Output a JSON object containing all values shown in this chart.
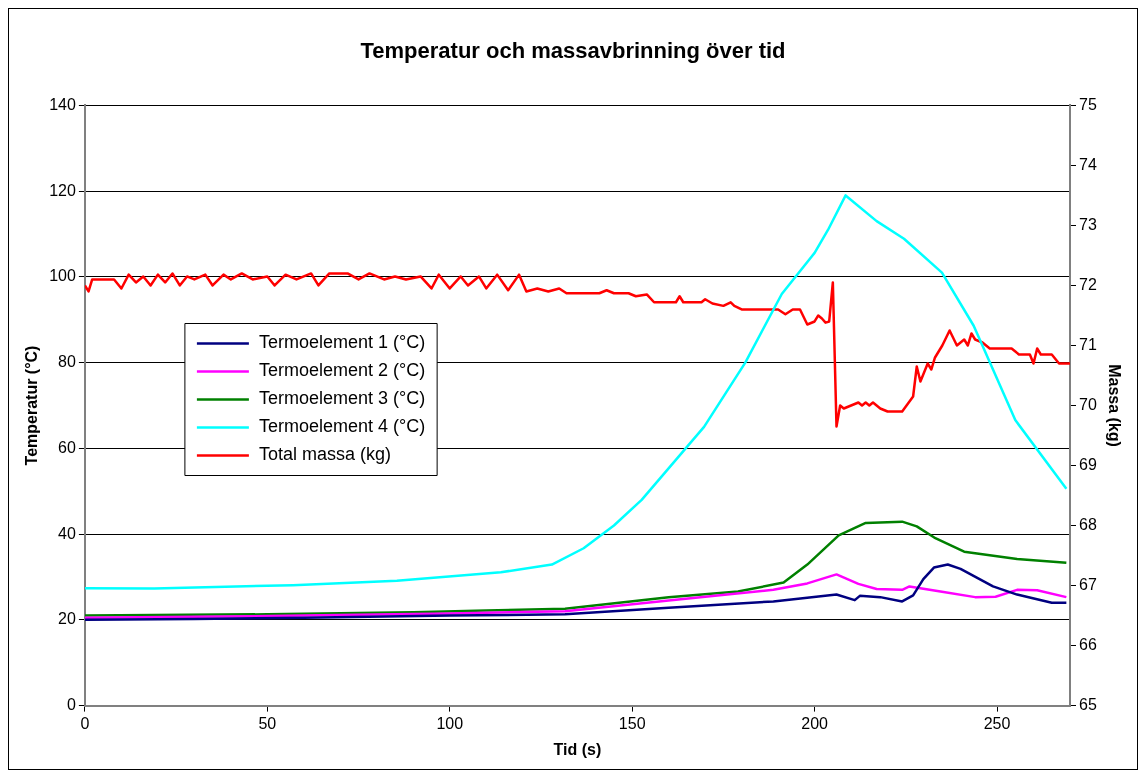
{
  "chart_data": {
    "type": "line",
    "title": "Temperatur och massavbrinning över tid",
    "xlabel": "Tid (s)",
    "ylabel": "Temperatur (°C)",
    "y2label": "Massa (kg)",
    "xlim": [
      0,
      270
    ],
    "xticks": [
      0,
      50,
      100,
      150,
      200,
      250
    ],
    "ylim": [
      0,
      140
    ],
    "yticks": [
      0,
      20,
      40,
      60,
      80,
      100,
      120,
      140
    ],
    "y2lim": [
      65,
      75
    ],
    "y2ticks": [
      65,
      66,
      67,
      68,
      69,
      70,
      71,
      72,
      73,
      74,
      75
    ],
    "grid": "y",
    "legend": "left",
    "marker": "none",
    "line_style": "solid",
    "series": [
      {
        "name": "Termoelement 1 (°C)",
        "color": "#000080",
        "x": [
          0,
          30,
          60,
          100,
          131.6,
          160,
          188.7,
          206,
          211,
          212.4,
          218,
          224,
          227,
          229.8,
          232.7,
          236.5,
          240,
          248.9,
          255.5,
          265,
          269
        ],
        "values": [
          20,
          20.2,
          20.5,
          21,
          21.3,
          22.8,
          24.3,
          25.9,
          24.6,
          25.6,
          25.3,
          24.3,
          25.7,
          29.5,
          32.2,
          32.9,
          31.9,
          27.8,
          25.9,
          24,
          24
        ]
      },
      {
        "name": "Termoelement 2 (°C)",
        "color": "#ff00ff",
        "x": [
          0,
          30,
          60,
          100,
          131.6,
          160,
          188.7,
          198,
          206,
          212,
          217,
          224,
          226,
          234.5,
          244,
          249.6,
          255.5,
          261,
          269
        ],
        "values": [
          20.5,
          20.7,
          21,
          21.5,
          22,
          24.5,
          27,
          28.5,
          30.6,
          28.4,
          27.2,
          27,
          27.8,
          26.6,
          25.3,
          25.4,
          27,
          26.9,
          25.3
        ]
      },
      {
        "name": "Termoelement 3 (°C)",
        "color": "#008000",
        "x": [
          0,
          50,
          90,
          110,
          131.6,
          160,
          179,
          191.5,
          198,
          206.6,
          214,
          224,
          228,
          232.8,
          241,
          255.5,
          269
        ],
        "values": [
          21,
          21.3,
          21.8,
          22.2,
          22.6,
          25.3,
          26.6,
          28.7,
          32.9,
          39.7,
          42.6,
          42.9,
          41.8,
          39.2,
          35.9,
          34.2,
          33.3
        ]
      },
      {
        "name": "Termoelement 4 (°C)",
        "color": "#00ffff",
        "x": [
          0,
          19,
          57,
          85.5,
          114,
          128,
          136.7,
          145,
          152.6,
          169.7,
          181,
          191,
          200,
          203.7,
          208.5,
          217,
          224.5,
          234.9,
          243.6,
          255,
          269
        ],
        "values": [
          27.4,
          27.3,
          28.1,
          29.1,
          31.1,
          32.9,
          36.7,
          42,
          48,
          65,
          80,
          96,
          105.6,
          111,
          119,
          113,
          108.9,
          101,
          88.6,
          66.6,
          50.6
        ]
      },
      {
        "name": "Total massa (kg)",
        "color": "#ff0000",
        "axis": "y2",
        "x": [
          0,
          1,
          2,
          8,
          10,
          12,
          14,
          16,
          18,
          20,
          22,
          24,
          26,
          28,
          30,
          33,
          35,
          38,
          40,
          43,
          46,
          50,
          52,
          55,
          58,
          62,
          64,
          67,
          72,
          75,
          78,
          82,
          85,
          88,
          92,
          95,
          97,
          100,
          103,
          105,
          108,
          110,
          113,
          116,
          119,
          121,
          124,
          127,
          130,
          132,
          141,
          143,
          145,
          149,
          151,
          154,
          156,
          162,
          163,
          164,
          169,
          170,
          172,
          175,
          177,
          178,
          180,
          190,
          192,
          194,
          196,
          198,
          200,
          201,
          202,
          203,
          204,
          205,
          206,
          207,
          208,
          210,
          212,
          213,
          214,
          215,
          216,
          218,
          220,
          224,
          227,
          228,
          229,
          230,
          231,
          232,
          233,
          235,
          237,
          239,
          241,
          242,
          243,
          244,
          246,
          248,
          254,
          256,
          259,
          260,
          261,
          262,
          265,
          267,
          270
        ],
        "values": [
          72.0,
          71.9,
          72.1,
          72.1,
          71.95,
          72.18,
          72.05,
          72.15,
          72.0,
          72.18,
          72.05,
          72.2,
          72.0,
          72.15,
          72.1,
          72.18,
          72.0,
          72.18,
          72.1,
          72.2,
          72.1,
          72.15,
          72.0,
          72.18,
          72.1,
          72.2,
          72.0,
          72.2,
          72.2,
          72.1,
          72.2,
          72.1,
          72.15,
          72.1,
          72.15,
          71.95,
          72.18,
          71.95,
          72.15,
          72.0,
          72.15,
          71.95,
          72.18,
          71.92,
          72.18,
          71.9,
          71.95,
          71.9,
          71.95,
          71.87,
          71.87,
          71.92,
          71.87,
          71.87,
          71.82,
          71.85,
          71.72,
          71.72,
          71.82,
          71.72,
          71.72,
          71.77,
          71.7,
          71.66,
          71.72,
          71.66,
          71.6,
          71.6,
          71.52,
          71.6,
          71.6,
          71.35,
          71.4,
          71.5,
          71.45,
          71.38,
          71.4,
          72.05,
          69.65,
          70.0,
          69.95,
          70.0,
          70.05,
          70.0,
          70.05,
          70.0,
          70.05,
          69.95,
          69.9,
          69.9,
          70.15,
          70.65,
          70.4,
          70.55,
          70.7,
          70.6,
          70.8,
          71.0,
          71.25,
          71.0,
          71.1,
          71.0,
          71.2,
          71.1,
          71.05,
          70.95,
          70.95,
          70.85,
          70.85,
          70.7,
          70.95,
          70.85,
          70.85,
          70.7,
          70.7
        ]
      }
    ]
  }
}
